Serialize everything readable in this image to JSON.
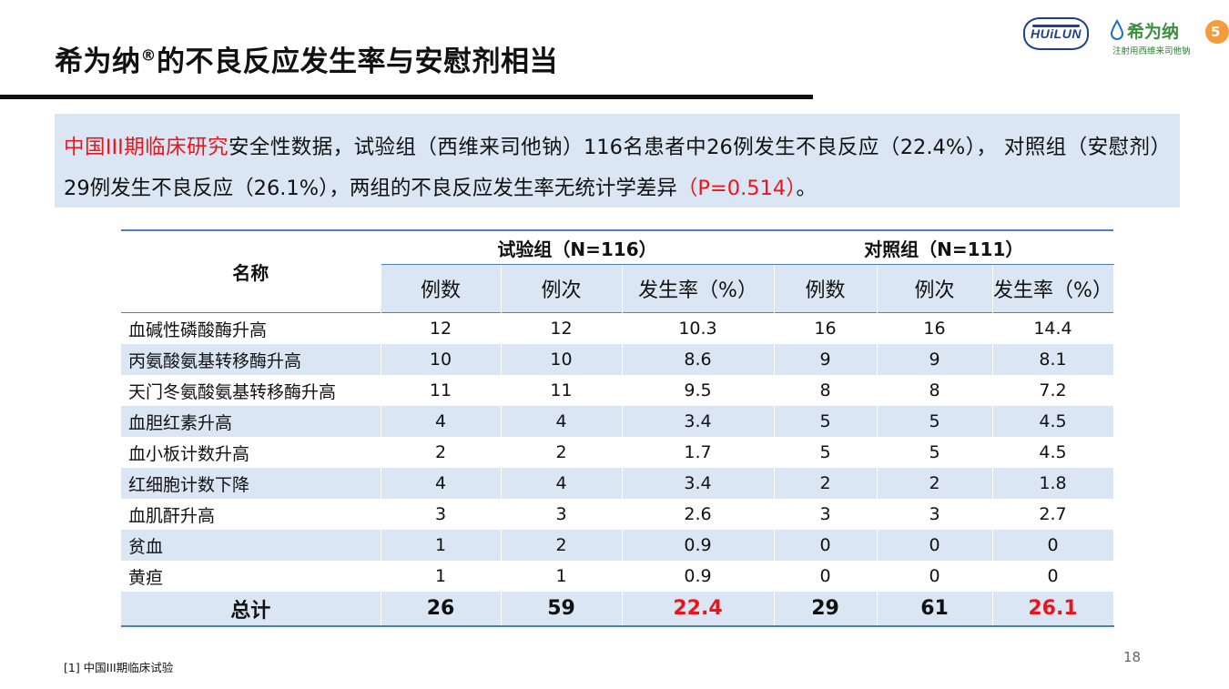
{
  "title": {
    "main": "希为纳",
    "mark": "®",
    "rest": "的不良反应发生率与安慰剂相当"
  },
  "logos": {
    "huilun": "HUiLUN",
    "brand_name": "希为纳",
    "brand_sub": "注射用西维来司他钠",
    "badge": "5"
  },
  "summary": {
    "highlight": "中国III期临床研究",
    "text_1": "安全性数据，试验组（西维来司他钠）116名患者中26例发生不良反应（22.4%）， 对照组（安慰剂）29例发生不良反应（26.1%），两组的不良反应发生率无统计学差异",
    "p_value": "（P=0.514）",
    "end": "。"
  },
  "table": {
    "name_header": "名称",
    "group_a": "试验组（N=116）",
    "group_b": "对照组（N=111）",
    "subheaders": [
      "例数",
      "例次",
      "发生率（%）",
      "例数",
      "例次",
      "发生率（%）"
    ],
    "rows": [
      {
        "name": "血碱性磷酸酶升高",
        "v": [
          "12",
          "12",
          "10.3",
          "16",
          "16",
          "14.4"
        ]
      },
      {
        "name": "丙氨酸氨基转移酶升高",
        "v": [
          "10",
          "10",
          "8.6",
          "9",
          "9",
          "8.1"
        ]
      },
      {
        "name": "天门冬氨酸氨基转移酶升高",
        "v": [
          "11",
          "11",
          "9.5",
          "8",
          "8",
          "7.2"
        ]
      },
      {
        "name": "血胆红素升高",
        "v": [
          "4",
          "4",
          "3.4",
          "5",
          "5",
          "4.5"
        ]
      },
      {
        "name": "血小板计数升高",
        "v": [
          "2",
          "2",
          "1.7",
          "5",
          "5",
          "4.5"
        ]
      },
      {
        "name": "红细胞计数下降",
        "v": [
          "4",
          "4",
          "3.4",
          "2",
          "2",
          "1.8"
        ]
      },
      {
        "name": "血肌酐升高",
        "v": [
          "3",
          "3",
          "2.6",
          "3",
          "3",
          "2.7"
        ]
      },
      {
        "name": "贫血",
        "v": [
          "1",
          "2",
          "0.9",
          "0",
          "0",
          "0"
        ]
      },
      {
        "name": "黄疸",
        "v": [
          "1",
          "1",
          "0.9",
          "0",
          "0",
          "0"
        ]
      }
    ],
    "total": {
      "name": "总计",
      "v": [
        "26",
        "59",
        "22.4",
        "29",
        "61",
        "26.1"
      ]
    }
  },
  "footnote": "[1] 中国III期临床试验",
  "page_number": "18",
  "colors": {
    "accent_red": "#e8151c",
    "row_tint": "#dbe6f4",
    "rule_blue": "#4f7fbf",
    "brand_green": "#3a8f3f"
  }
}
